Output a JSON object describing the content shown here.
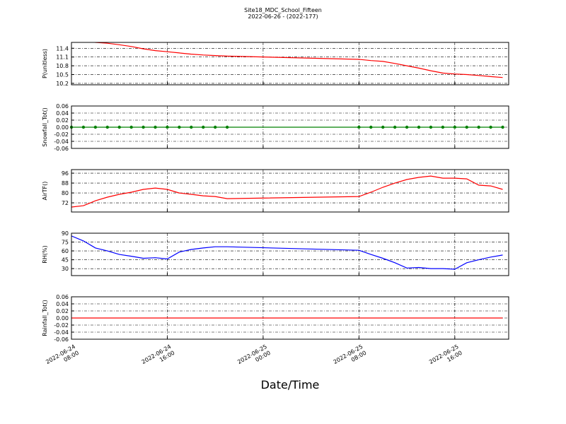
{
  "chart_data": [
    {
      "type": "line",
      "title": "Site18_MDC_School_Fifteen",
      "subtitle": "2022-06-26 - (2022-177)",
      "y_label": "P(unitless)",
      "grid": true,
      "x": [
        "2022-06-24 08:00",
        "2022-06-24 09:00",
        "2022-06-24 10:00",
        "2022-06-24 11:00",
        "2022-06-24 12:00",
        "2022-06-24 13:00",
        "2022-06-24 14:00",
        "2022-06-24 15:00",
        "2022-06-24 16:00",
        "2022-06-24 17:00",
        "2022-06-24 18:00",
        "2022-06-24 19:00",
        "2022-06-24 20:00",
        "2022-06-24 21:00",
        "2022-06-25 08:00",
        "2022-06-25 09:00",
        "2022-06-25 10:00",
        "2022-06-25 11:00",
        "2022-06-25 12:00",
        "2022-06-25 13:00",
        "2022-06-25 14:00",
        "2022-06-25 15:00",
        "2022-06-25 16:00",
        "2022-06-25 17:00",
        "2022-06-25 18:00",
        "2022-06-25 19:00",
        "2022-06-25 20:00"
      ],
      "series": [
        {
          "color": "#ff0000",
          "values": [
            11.68,
            11.64,
            11.6,
            11.57,
            11.52,
            11.46,
            11.38,
            11.32,
            11.28,
            11.24,
            11.2,
            11.17,
            11.15,
            11.13,
            11.02,
            10.98,
            10.95,
            10.88,
            10.8,
            10.72,
            10.63,
            10.55,
            10.52,
            10.5,
            10.47,
            10.43,
            10.4
          ]
        }
      ],
      "xlim": [
        "2022-06-24 08:00",
        "2022-06-25 20:30"
      ],
      "xticks": [
        "2022-06-24 08:00",
        "2022-06-24 16:00",
        "2022-06-25 00:00",
        "2022-06-25 08:00",
        "2022-06-25 16:00"
      ],
      "ylim": [
        10.15,
        11.6
      ],
      "yticks": [
        10.2,
        10.5,
        10.8,
        11.1,
        11.4
      ]
    },
    {
      "type": "line",
      "y_label": "Snowfall_Tot()",
      "grid": true,
      "marker": true,
      "x": [
        "2022-06-24 08:00",
        "2022-06-24 09:00",
        "2022-06-24 10:00",
        "2022-06-24 11:00",
        "2022-06-24 12:00",
        "2022-06-24 13:00",
        "2022-06-24 14:00",
        "2022-06-24 15:00",
        "2022-06-24 16:00",
        "2022-06-24 17:00",
        "2022-06-24 18:00",
        "2022-06-24 19:00",
        "2022-06-24 20:00",
        "2022-06-24 21:00",
        "2022-06-25 08:00",
        "2022-06-25 09:00",
        "2022-06-25 10:00",
        "2022-06-25 11:00",
        "2022-06-25 12:00",
        "2022-06-25 13:00",
        "2022-06-25 14:00",
        "2022-06-25 15:00",
        "2022-06-25 16:00",
        "2022-06-25 17:00",
        "2022-06-25 18:00",
        "2022-06-25 19:00",
        "2022-06-25 20:00"
      ],
      "series": [
        {
          "color": "#008000",
          "values": [
            0,
            0,
            0,
            0,
            0,
            0,
            0,
            0,
            0,
            0,
            0,
            0,
            0,
            0,
            0,
            0,
            0,
            0,
            0,
            0,
            0,
            0,
            0,
            0,
            0,
            0,
            0
          ]
        }
      ],
      "xlim": [
        "2022-06-24 08:00",
        "2022-06-25 20:30"
      ],
      "xticks": [
        "2022-06-24 08:00",
        "2022-06-24 16:00",
        "2022-06-25 00:00",
        "2022-06-25 08:00",
        "2022-06-25 16:00"
      ],
      "ylim": [
        -0.06,
        0.06
      ],
      "yticks": [
        -0.06,
        -0.04,
        -0.02,
        {
          "value": 0,
          "label": "0.00"
        },
        0.02,
        0.04,
        0.06
      ]
    },
    {
      "type": "line",
      "y_label": "AirTF()",
      "grid": true,
      "x": [
        "2022-06-24 08:00",
        "2022-06-24 09:00",
        "2022-06-24 10:00",
        "2022-06-24 11:00",
        "2022-06-24 12:00",
        "2022-06-24 13:00",
        "2022-06-24 14:00",
        "2022-06-24 15:00",
        "2022-06-24 16:00",
        "2022-06-24 17:00",
        "2022-06-24 18:00",
        "2022-06-24 19:00",
        "2022-06-24 20:00",
        "2022-06-24 21:00",
        "2022-06-25 08:00",
        "2022-06-25 09:00",
        "2022-06-25 10:00",
        "2022-06-25 11:00",
        "2022-06-25 12:00",
        "2022-06-25 13:00",
        "2022-06-25 14:00",
        "2022-06-25 15:00",
        "2022-06-25 16:00",
        "2022-06-25 17:00",
        "2022-06-25 18:00",
        "2022-06-25 19:00",
        "2022-06-25 20:00"
      ],
      "series": [
        {
          "color": "#ff0000",
          "values": [
            68.6,
            69.7,
            73.7,
            76.6,
            78.9,
            80.6,
            82.9,
            84,
            82.9,
            80,
            78.9,
            77.7,
            77.1,
            75.4,
            77.1,
            80.6,
            84.6,
            88,
            90.9,
            92.6,
            93.7,
            92,
            92,
            91.4,
            86.3,
            85.7,
            82.9
          ]
        }
      ],
      "xlim": [
        "2022-06-24 08:00",
        "2022-06-25 20:30"
      ],
      "xticks": [
        "2022-06-24 08:00",
        "2022-06-24 16:00",
        "2022-06-25 00:00",
        "2022-06-25 08:00",
        "2022-06-25 16:00"
      ],
      "ylim": [
        64.6,
        98.9
      ],
      "yticks": [
        72,
        80,
        88,
        96
      ]
    },
    {
      "type": "line",
      "y_label": "RH(%)",
      "grid": true,
      "x": [
        "2022-06-24 08:00",
        "2022-06-24 09:00",
        "2022-06-24 10:00",
        "2022-06-24 11:00",
        "2022-06-24 12:00",
        "2022-06-24 13:00",
        "2022-06-24 14:00",
        "2022-06-24 15:00",
        "2022-06-24 16:00",
        "2022-06-24 17:00",
        "2022-06-24 18:00",
        "2022-06-24 19:00",
        "2022-06-24 20:00",
        "2022-06-24 21:00",
        "2022-06-25 08:00",
        "2022-06-25 09:00",
        "2022-06-25 10:00",
        "2022-06-25 11:00",
        "2022-06-25 12:00",
        "2022-06-25 13:00",
        "2022-06-25 14:00",
        "2022-06-25 15:00",
        "2022-06-25 16:00",
        "2022-06-25 17:00",
        "2022-06-25 18:00",
        "2022-06-25 19:00",
        "2022-06-25 20:00"
      ],
      "series": [
        {
          "color": "#0000ff",
          "values": [
            85.3,
            77,
            65,
            60,
            54,
            51,
            47.5,
            48.5,
            46.4,
            58,
            62.5,
            65,
            67,
            67,
            61,
            54,
            47.5,
            40,
            31,
            32,
            30,
            30,
            29,
            40,
            45,
            49.5,
            53
          ]
        }
      ],
      "xlim": [
        "2022-06-24 08:00",
        "2022-06-25 20:30"
      ],
      "xticks": [
        "2022-06-24 08:00",
        "2022-06-24 16:00",
        "2022-06-25 00:00",
        "2022-06-25 08:00",
        "2022-06-25 16:00"
      ],
      "ylim": [
        18.2,
        90
      ],
      "yticks": [
        30,
        45,
        60,
        75,
        90
      ]
    },
    {
      "type": "line",
      "y_label": "Rainfall_Tot()",
      "x_label": "Date/Time",
      "grid": true,
      "x": [
        "2022-06-24 08:00",
        "2022-06-24 09:00",
        "2022-06-24 10:00",
        "2022-06-24 11:00",
        "2022-06-24 12:00",
        "2022-06-24 13:00",
        "2022-06-24 14:00",
        "2022-06-24 15:00",
        "2022-06-24 16:00",
        "2022-06-24 17:00",
        "2022-06-24 18:00",
        "2022-06-24 19:00",
        "2022-06-24 20:00",
        "2022-06-24 21:00",
        "2022-06-25 08:00",
        "2022-06-25 09:00",
        "2022-06-25 10:00",
        "2022-06-25 11:00",
        "2022-06-25 12:00",
        "2022-06-25 13:00",
        "2022-06-25 14:00",
        "2022-06-25 15:00",
        "2022-06-25 16:00",
        "2022-06-25 17:00",
        "2022-06-25 18:00",
        "2022-06-25 19:00",
        "2022-06-25 20:00"
      ],
      "series": [
        {
          "color": "#ff0000",
          "values": [
            0,
            0,
            0,
            0,
            0,
            0,
            0,
            0,
            0,
            0,
            0,
            0,
            0,
            0,
            0,
            0,
            0,
            0,
            0,
            0,
            0,
            0,
            0,
            0,
            0,
            0,
            0
          ]
        }
      ],
      "xlim": [
        "2022-06-24 08:00",
        "2022-06-25 20:30"
      ],
      "xticks": [
        {
          "value": "2022-06-24 08:00",
          "label": [
            "2022-06-24",
            "08:00"
          ]
        },
        {
          "value": "2022-06-24 16:00",
          "label": [
            "2022-06-24",
            "16:00"
          ]
        },
        {
          "value": "2022-06-25 00:00",
          "label": [
            "2022-06-25",
            "00:00"
          ]
        },
        {
          "value": "2022-06-25 08:00",
          "label": [
            "2022-06-25",
            "08:00"
          ]
        },
        {
          "value": "2022-06-25 16:00",
          "label": [
            "2022-06-25",
            "16:00"
          ]
        }
      ],
      "ylim": [
        -0.06,
        0.06
      ],
      "yticks": [
        -0.06,
        -0.04,
        -0.02,
        {
          "value": 0,
          "label": "0.00"
        },
        0.02,
        0.04,
        0.06
      ]
    }
  ]
}
